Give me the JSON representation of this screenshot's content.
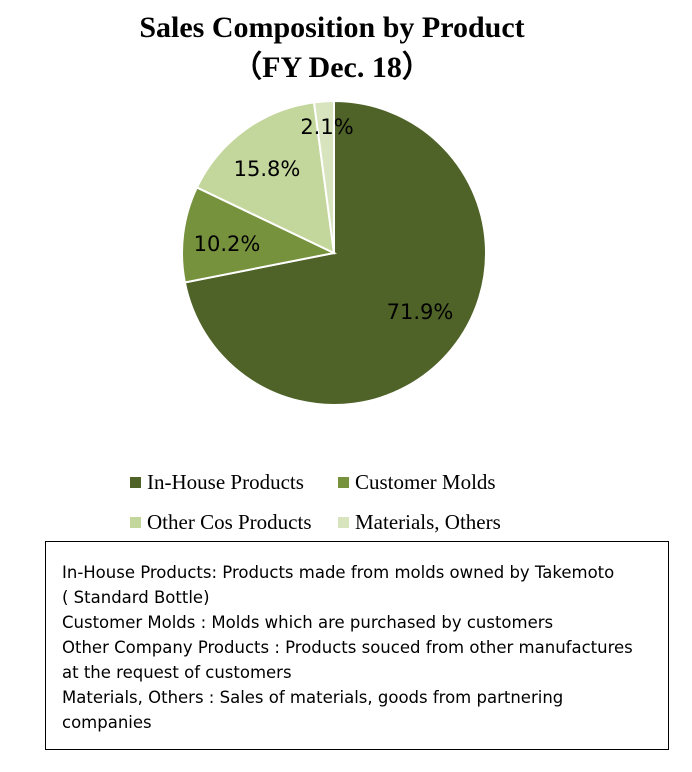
{
  "chart_data": {
    "type": "pie",
    "title": "Sales Composition by Product",
    "subtitle": "（FY Dec. 18）",
    "slices": [
      {
        "name": "In-House Products",
        "value": 71.9,
        "label": "71.9%",
        "color": "#4f6228"
      },
      {
        "name": "Customer Molds",
        "value": 10.2,
        "label": "10.2%",
        "color": "#76923c"
      },
      {
        "name": "Other Cos Products",
        "value": 15.8,
        "label": "15.8%",
        "color": "#c3d69b"
      },
      {
        "name": "Materials, Others",
        "value": 2.1,
        "label": "2.1%",
        "color": "#d7e4bd"
      }
    ],
    "start": "12 o'clock",
    "direction": "clockwise",
    "legend_position": "bottom"
  },
  "notes": [
    "In-House Products: Products made from molds owned by Takemoto",
    "( Standard Bottle)",
    "Customer Molds : Molds which are purchased by customers",
    "Other Company Products : Products souced from other manufactures",
    "at the request of customers",
    "Materials, Others : Sales of materials, goods from partnering",
    "companies"
  ]
}
